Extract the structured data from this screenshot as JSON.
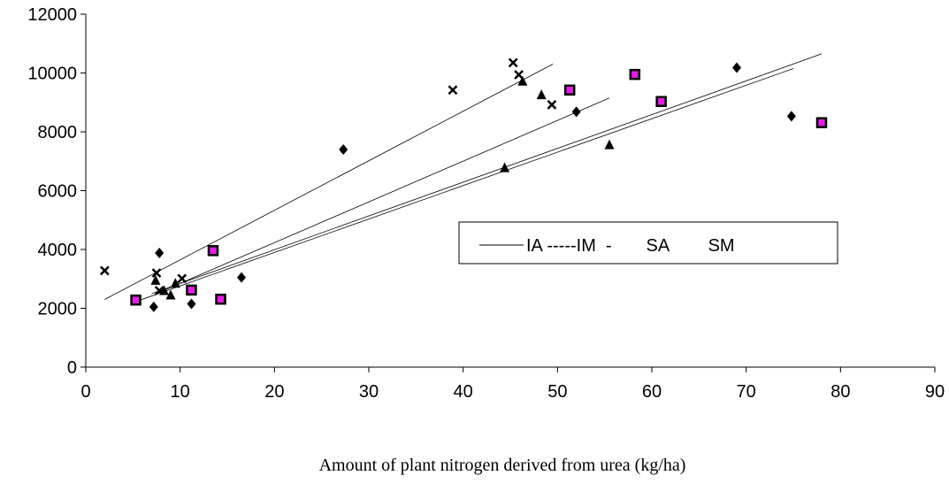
{
  "chart_data": {
    "type": "scatter",
    "title": "",
    "xlabel": "Amount of plant nitrogen derived from urea (kg/ha)",
    "ylabel": "",
    "xlim": [
      0,
      90
    ],
    "ylim": [
      0,
      12000
    ],
    "x_ticks": [
      0,
      10,
      20,
      30,
      40,
      50,
      60,
      70,
      80,
      90
    ],
    "y_ticks": [
      0,
      2000,
      4000,
      6000,
      8000,
      10000,
      12000
    ],
    "grid": false,
    "legend_text": "IA -----IM  -       SA        SM",
    "legend_placement": "center-right",
    "series": [
      {
        "marker": "diamond",
        "color": "#000000",
        "points": [
          [
            7.2,
            2050
          ],
          [
            7.8,
            3880
          ],
          [
            11.2,
            2150
          ],
          [
            16.5,
            3050
          ],
          [
            27.3,
            7400
          ],
          [
            52.0,
            8680
          ],
          [
            69.0,
            10180
          ],
          [
            74.8,
            8530
          ]
        ]
      },
      {
        "marker": "square",
        "color": "#000000",
        "fill_color": "#e020e0",
        "points": [
          [
            5.3,
            2280
          ],
          [
            11.2,
            2620
          ],
          [
            13.5,
            3960
          ],
          [
            14.3,
            2310
          ],
          [
            51.3,
            9420
          ],
          [
            58.2,
            9950
          ],
          [
            61.0,
            9030
          ],
          [
            78.0,
            8310
          ]
        ]
      },
      {
        "marker": "x",
        "color": "#000000",
        "points": [
          [
            2.0,
            3280
          ],
          [
            7.5,
            3200
          ],
          [
            7.8,
            2600
          ],
          [
            10.2,
            3010
          ],
          [
            38.9,
            9420
          ],
          [
            45.3,
            10350
          ],
          [
            45.9,
            9940
          ],
          [
            49.4,
            8920
          ]
        ]
      },
      {
        "marker": "triangle",
        "color": "#000000",
        "points": [
          [
            7.4,
            2950
          ],
          [
            8.3,
            2600
          ],
          [
            9.0,
            2450
          ],
          [
            9.5,
            2850
          ],
          [
            44.4,
            6780
          ],
          [
            46.3,
            9720
          ],
          [
            48.3,
            9260
          ],
          [
            55.5,
            7560
          ]
        ]
      }
    ],
    "trendlines": [
      {
        "from": [
          2,
          2300
        ],
        "to": [
          49.5,
          10300
        ]
      },
      {
        "from": [
          7.5,
          2500
        ],
        "to": [
          55.5,
          9150
        ]
      },
      {
        "from": [
          5.5,
          2250
        ],
        "to": [
          75,
          10150
        ]
      },
      {
        "from": [
          7,
          2500
        ],
        "to": [
          78,
          10650
        ]
      }
    ]
  }
}
